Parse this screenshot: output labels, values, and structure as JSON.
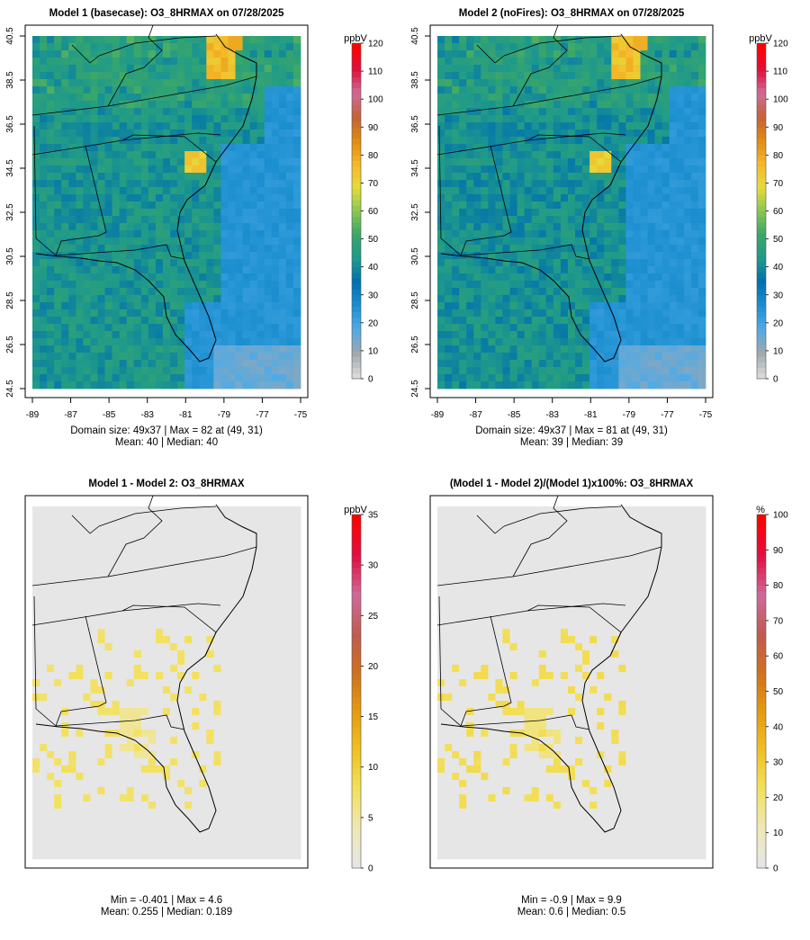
{
  "panels": [
    {
      "id": "p1",
      "title": "Model 1 (basecase): O3_8HRMAX on 07/28/2025",
      "unit": "ppbV",
      "stats_line1": "Domain size: 49x37 | Max = 82 at (49, 31)",
      "stats_line2": "Mean: 40 |  Median: 40",
      "x_ticks": [
        "-89",
        "-87",
        "-85",
        "-83",
        "-81",
        "-79",
        "-77",
        "-75"
      ],
      "y_ticks": [
        "24.5",
        "26.5",
        "28.5",
        "30.5",
        "32.5",
        "34.5",
        "36.5",
        "38.5",
        "40.5"
      ],
      "colorbar": {
        "min": 0,
        "max": 120,
        "labels": [
          "0",
          "10",
          "20",
          "30",
          "40",
          "50",
          "60",
          "70",
          "80",
          "90",
          "100",
          "110",
          "120"
        ]
      },
      "field": {
        "mean": 40,
        "max": 82,
        "kind": "conc"
      }
    },
    {
      "id": "p2",
      "title": "Model 2 (noFires): O3_8HRMAX on 07/28/2025",
      "unit": "ppbV",
      "stats_line1": "Domain size: 49x37 | Max = 81 at (49, 31)",
      "stats_line2": "Mean: 39 |  Median: 39",
      "x_ticks": [
        "-89",
        "-87",
        "-85",
        "-83",
        "-81",
        "-79",
        "-77",
        "-75"
      ],
      "y_ticks": [
        "24.5",
        "26.5",
        "28.5",
        "30.5",
        "32.5",
        "34.5",
        "36.5",
        "38.5",
        "40.5"
      ],
      "colorbar": {
        "min": 0,
        "max": 120,
        "labels": [
          "0",
          "10",
          "20",
          "30",
          "40",
          "50",
          "60",
          "70",
          "80",
          "90",
          "100",
          "110",
          "120"
        ]
      },
      "field": {
        "mean": 39,
        "max": 81,
        "kind": "conc"
      }
    },
    {
      "id": "p3",
      "title": "Model 1 - Model 2: O3_8HRMAX",
      "unit": "ppbV",
      "stats_line1": "Min = -0.401 | Max = 4.6",
      "stats_line2": "Mean: 0.255 |  Median: 0.189",
      "colorbar": {
        "min": 0,
        "max": 35,
        "labels": [
          "0",
          "5",
          "10",
          "15",
          "20",
          "25",
          "30",
          "35"
        ]
      },
      "field": {
        "mean": 0.255,
        "max": 4.6,
        "kind": "diff"
      }
    },
    {
      "id": "p4",
      "title": "(Model 1 - Model 2)/(Model 1)x100%: O3_8HRMAX",
      "unit": "%",
      "stats_line1": "Min = -0.9 | Max = 9.9",
      "stats_line2": "Mean: 0.6 |  Median: 0.5",
      "colorbar": {
        "min": 0,
        "max": 100,
        "labels": [
          "0",
          "10",
          "20",
          "30",
          "40",
          "50",
          "60",
          "70",
          "80",
          "90",
          "100"
        ]
      },
      "field": {
        "mean": 0.6,
        "max": 9.9,
        "kind": "pct"
      }
    }
  ],
  "chart_data": {
    "type": "heatmap",
    "grid": {
      "cols": 37,
      "rows": 49
    },
    "lon_range": [
      -89,
      -75
    ],
    "lat_range": [
      24.5,
      40.5
    ],
    "colormap": [
      "#d9d9d9",
      "#9fa6ad",
      "#4faae6",
      "#1b8fd0",
      "#006fb0",
      "#1f9a8a",
      "#3aa66a",
      "#88c653",
      "#e5dc3a",
      "#f5b82a",
      "#e08a12",
      "#c46236",
      "#ce6c9a",
      "#e0103a",
      "#ff0000"
    ]
  }
}
